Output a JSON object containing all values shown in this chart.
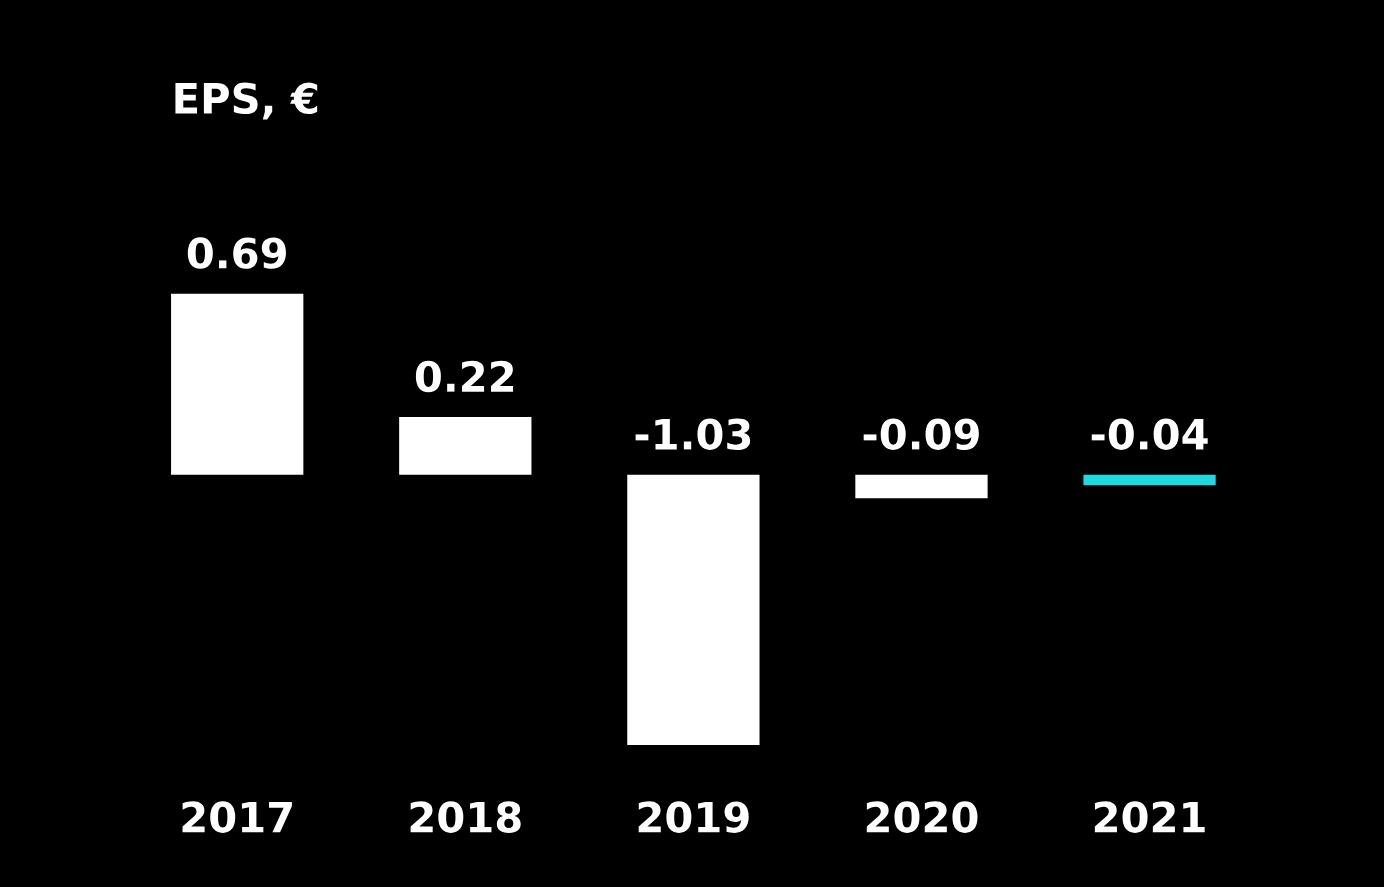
{
  "chart_data": {
    "type": "bar",
    "title": "EPS, €",
    "categories": [
      "2017",
      "2018",
      "2019",
      "2020",
      "2021"
    ],
    "values": [
      0.69,
      0.22,
      -1.03,
      -0.09,
      -0.04
    ],
    "colors": [
      "#ffffff",
      "#ffffff",
      "#ffffff",
      "#ffffff",
      "#1fd8e0"
    ],
    "data_labels": true,
    "grid": false,
    "legend": false
  }
}
